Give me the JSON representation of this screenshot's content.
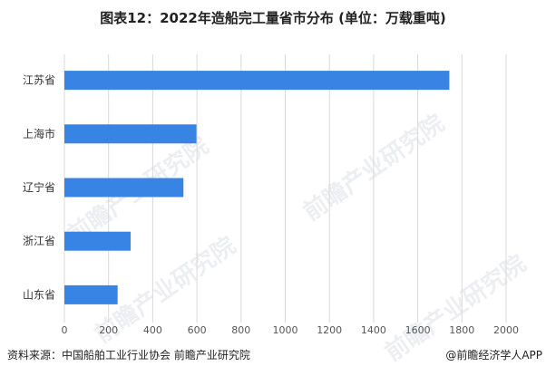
{
  "title": "图表12：2022年造船完工量省市分布 (单位：万载重吨)",
  "source": "资料来源：中国船舶工业行业协会 前瞻产业研究院",
  "credit": "@前瞻经济学人APP",
  "watermark": "前瞻产业研究院",
  "chart_data": {
    "type": "bar",
    "orientation": "horizontal",
    "title": "图表12：2022年造船完工量省市分布 (单位：万载重吨)",
    "categories": [
      "江苏省",
      "上海市",
      "辽宁省",
      "浙江省",
      "山东省"
    ],
    "values": [
      1743,
      598,
      539,
      300,
      241
    ],
    "xlim": [
      0,
      2000
    ],
    "xticks": [
      "0",
      "200",
      "400",
      "600",
      "800",
      "1000",
      "1200",
      "1400",
      "1600",
      "1800",
      "2000"
    ],
    "grid": true,
    "legend": "none",
    "bar_color": "#3784e4",
    "grid_color": "#d9d9d9"
  }
}
